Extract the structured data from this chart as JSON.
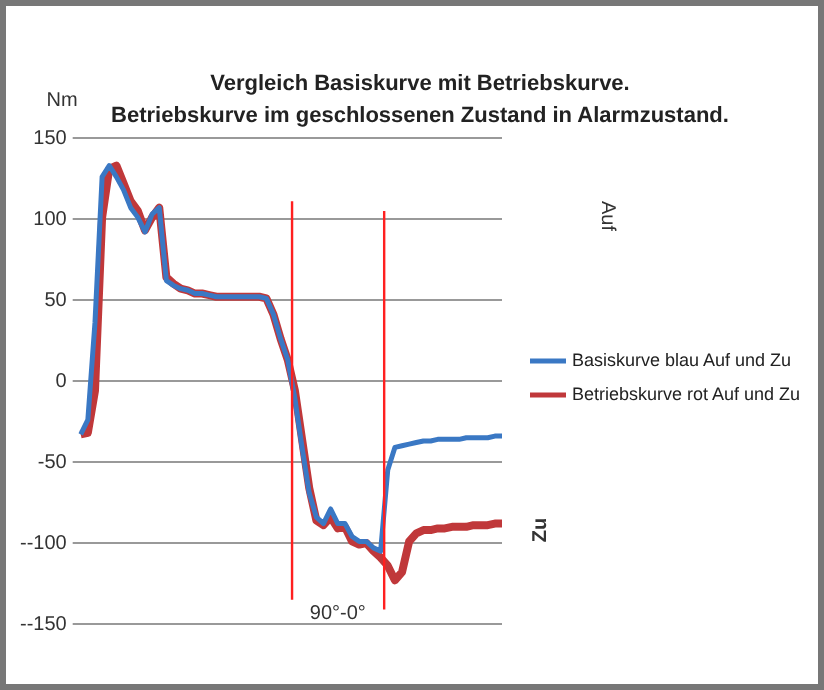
{
  "chart_data": {
    "type": "line",
    "title": "Vergleich Basiskurve mit Betriebskurve.",
    "subtitle": "Betriebskurve im geschlossenen Zustand in Alarmzustand.",
    "ylabel": "Nm",
    "categories": [
      null,
      null,
      null,
      null,
      null,
      null,
      null,
      null,
      null,
      null,
      null,
      null,
      null,
      null,
      null,
      null,
      null,
      null,
      null,
      null,
      null,
      null,
      null,
      null,
      null,
      null,
      null,
      null,
      null,
      null,
      null,
      null,
      null,
      null,
      null,
      null,
      null,
      null,
      null,
      null,
      null,
      null,
      null,
      null,
      null,
      null,
      null,
      null,
      null,
      null,
      null,
      null,
      null,
      null,
      null,
      null,
      null,
      null,
      null,
      null
    ],
    "series": [
      {
        "name": "Basiskurve blau Auf und Zu",
        "color": "#3a78c4",
        "values": [
          -33,
          -24,
          36,
          126,
          133,
          126,
          118,
          107,
          101,
          92,
          103,
          107,
          62,
          59,
          57,
          56,
          54,
          54,
          53,
          52,
          52,
          52,
          52,
          52,
          52,
          52,
          51,
          41,
          26,
          13,
          -11,
          -41,
          -69,
          -84,
          -88,
          -79,
          -88,
          -88,
          -96,
          -99,
          -99,
          -103,
          -105,
          -55,
          -41,
          -40,
          -39,
          -38,
          -37,
          -37,
          -36,
          -36,
          -36,
          -36,
          -35,
          -35,
          -35,
          -35,
          -34,
          -34
        ]
      },
      {
        "name": "Betriebskurve rot Auf und Zu",
        "color": "#c0383a",
        "values": [
          -33,
          -32,
          -6,
          101,
          131,
          133,
          122,
          111,
          105,
          93,
          101,
          107,
          64,
          60,
          57,
          56,
          54,
          54,
          53,
          52,
          52,
          52,
          52,
          52,
          52,
          52,
          51,
          41,
          26,
          13,
          -6,
          -36,
          -66,
          -86,
          -89,
          -84,
          -91,
          -90,
          -99,
          -101,
          -100,
          -105,
          -109,
          -114,
          -123,
          -118,
          -99,
          -94,
          -92,
          -92,
          -91,
          -91,
          -90,
          -90,
          -90,
          -89,
          -89,
          -89,
          -88,
          -88
        ]
      }
    ],
    "ylim": [
      -150,
      150
    ],
    "yticks": [
      150,
      100,
      50,
      0,
      -50,
      {
        "value": -100,
        "label": "--100"
      },
      {
        "value": -150,
        "label": "--150"
      }
    ],
    "annotations": [
      "Auf",
      "Zu",
      "90°-0°"
    ],
    "grid": "y",
    "legend": "right",
    "marker": "none",
    "line_style": "solid"
  }
}
